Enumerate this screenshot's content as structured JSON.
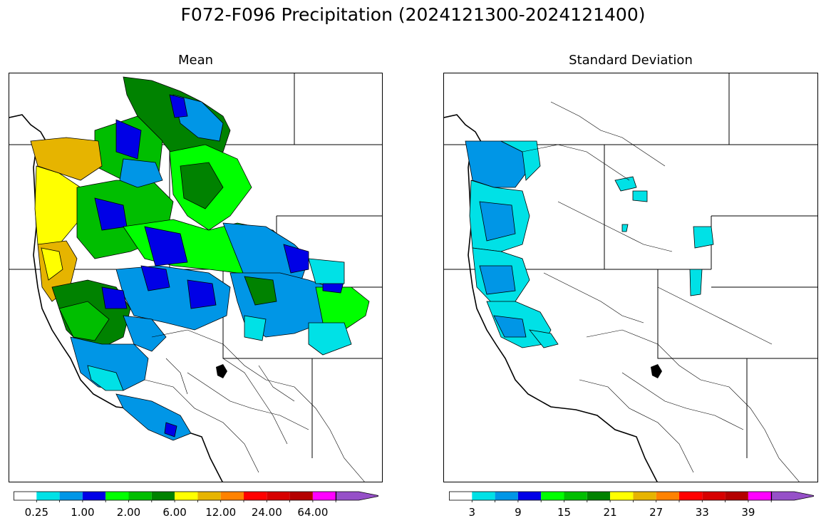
{
  "title": "F072-F096 Precipitation (2024121300-2024121400)",
  "panels": [
    {
      "title": "Mean",
      "colorbar": {
        "colors": [
          "#ffffff",
          "#00e1e6",
          "#0096e6",
          "#0000e6",
          "#00ff00",
          "#00be00",
          "#008200",
          "#ffff00",
          "#e6b400",
          "#ff8200",
          "#ff0000",
          "#d70000",
          "#b40000",
          "#ff00ff",
          "#9650c8"
        ],
        "tick_labels": [
          "0.25",
          "1.00",
          "2.00",
          "6.00",
          "12.00",
          "24.00",
          "64.00"
        ],
        "extend": "max"
      }
    },
    {
      "title": "Standard Deviation",
      "colorbar": {
        "colors": [
          "#ffffff",
          "#00e1e6",
          "#0096e6",
          "#0000e6",
          "#00ff00",
          "#00be00",
          "#008200",
          "#ffff00",
          "#e6b400",
          "#ff8200",
          "#ff0000",
          "#d70000",
          "#b40000",
          "#ff00ff",
          "#9650c8"
        ],
        "tick_labels": [
          "3",
          "9",
          "15",
          "21",
          "27",
          "33",
          "39"
        ],
        "extend": "max"
      }
    }
  ]
}
